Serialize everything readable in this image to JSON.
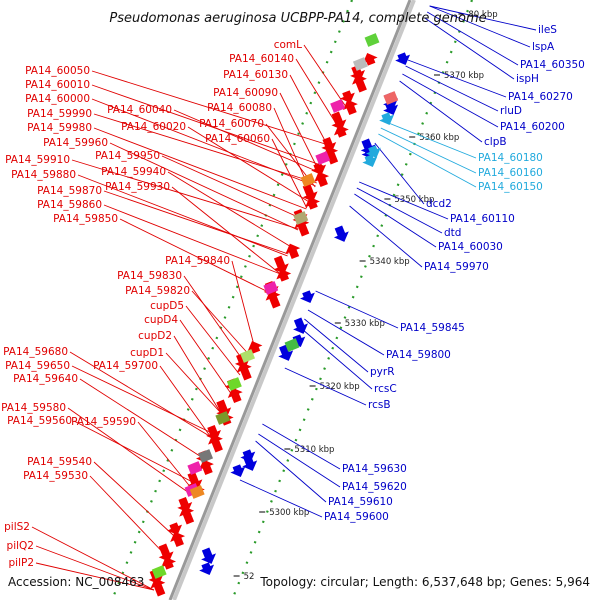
{
  "title": "Pseudomonas aeruginosa UCBPP-PA14, complete genome",
  "footer": {
    "accession": "Accession: NC_008463",
    "summary": "Topology: circular; Length: 6,537,648 bp; Genes: 5,964"
  },
  "colors": {
    "forward": "#ee0000",
    "reverse": "#0000dd",
    "highlight": "#22aadd",
    "backbone": "#999999"
  },
  "scale_ticks": [
    "80 kbp",
    "5370 kbp",
    "5360 kbp",
    "5350 kbp",
    "5340 kbp",
    "5330 kbp",
    "5320 kbp",
    "5310 kbp",
    "5300 kbp",
    "52"
  ],
  "left_labels": [
    "comL",
    "PA14_60140",
    "PA14_60130",
    "PA14_60090",
    "PA14_60080",
    "PA14_60070",
    "PA14_60060",
    "PA14_60050",
    "PA14_60010",
    "PA14_60000",
    "PA14_60040",
    "PA14_59990",
    "PA14_60020",
    "PA14_59980",
    "PA14_59960",
    "PA14_59950",
    "PA14_59910",
    "PA14_59940",
    "PA14_59880",
    "PA14_59930",
    "PA14_59870",
    "PA14_59860",
    "PA14_59850",
    "PA14_59840",
    "PA14_59830",
    "PA14_59820",
    "cupD5",
    "cupD4",
    "cupD2",
    "PA14_59680",
    "cupD1",
    "PA14_59650",
    "PA14_59700",
    "PA14_59640",
    "PA14_59580",
    "PA14_59560",
    "PA14_59590",
    "PA14_59540",
    "PA14_59530",
    "pilS2",
    "pilQ2",
    "pilP2"
  ],
  "right_labels": [
    "ileS",
    "lspA",
    "PA14_60350",
    "ispH",
    "PA14_60270",
    "rluD",
    "PA14_60200",
    "clpB",
    "PA14_60180",
    "PA14_60160",
    "PA14_60150",
    "dcd2",
    "PA14_60110",
    "dtd",
    "PA14_60030",
    "PA14_59970",
    "PA14_59845",
    "PA14_59800",
    "pyrR",
    "rcsC",
    "rcsB",
    "PA14_59630",
    "PA14_59620",
    "PA14_59610",
    "PA14_59600"
  ]
}
